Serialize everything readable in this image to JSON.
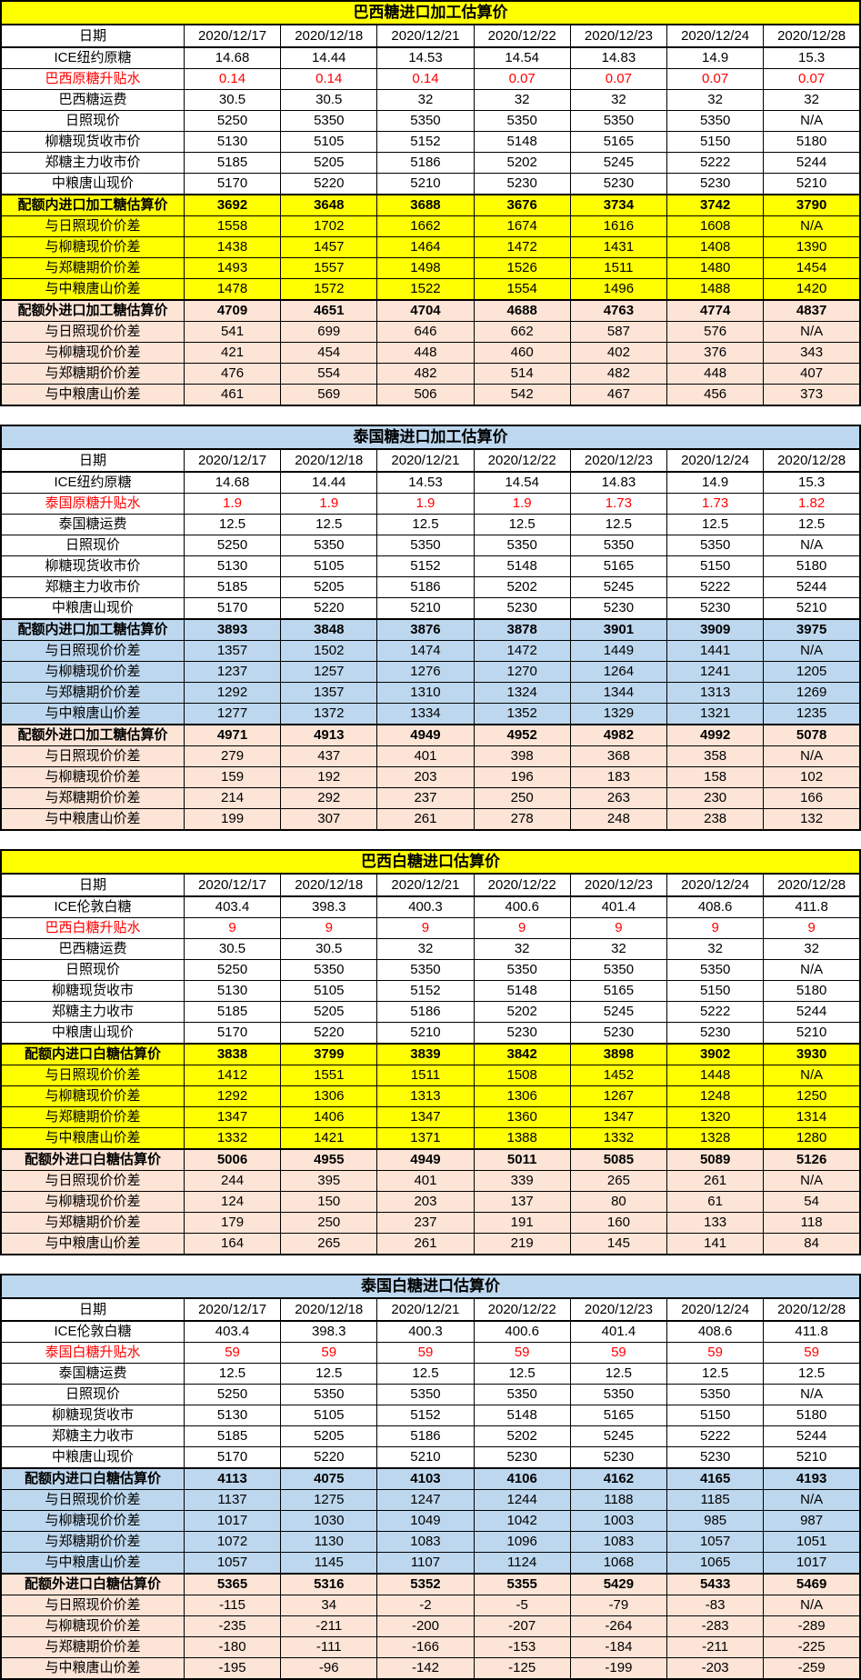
{
  "colors": {
    "yellow_theme": "#FFFF00",
    "blue_theme": "#BDD7EE",
    "peach_band": "#FCE4D6",
    "red_text": "#FF0000",
    "border": "#000000"
  },
  "tables": [
    {
      "title": "巴西糖进口加工估算价",
      "theme": "yellow",
      "date_label": "日期",
      "dates": [
        "2020/12/17",
        "2020/12/18",
        "2020/12/21",
        "2020/12/22",
        "2020/12/23",
        "2020/12/24",
        "2020/12/28"
      ],
      "rows": [
        {
          "label": "ICE纽约原糖",
          "style": "plain",
          "values": [
            "14.68",
            "14.44",
            "14.53",
            "14.54",
            "14.83",
            "14.9",
            "15.3"
          ]
        },
        {
          "label": "巴西原糖升贴水",
          "style": "red",
          "values": [
            "0.14",
            "0.14",
            "0.14",
            "0.07",
            "0.07",
            "0.07",
            "0.07"
          ]
        },
        {
          "label": "巴西糖运费",
          "style": "plain",
          "values": [
            "30.5",
            "30.5",
            "32",
            "32",
            "32",
            "32",
            "32"
          ]
        },
        {
          "label": "日照现价",
          "style": "plain",
          "values": [
            "5250",
            "5350",
            "5350",
            "5350",
            "5350",
            "5350",
            "N/A"
          ]
        },
        {
          "label": "柳糖现货收市价",
          "style": "plain",
          "values": [
            "5130",
            "5105",
            "5152",
            "5148",
            "5165",
            "5150",
            "5180"
          ]
        },
        {
          "label": "郑糖主力收市价",
          "style": "plain",
          "values": [
            "5185",
            "5205",
            "5186",
            "5202",
            "5245",
            "5222",
            "5244"
          ]
        },
        {
          "label": "中粮唐山现价",
          "style": "plain",
          "values": [
            "5170",
            "5220",
            "5210",
            "5230",
            "5230",
            "5230",
            "5210"
          ]
        },
        {
          "label": "配额内进口加工糖估算价",
          "style": "in-head",
          "values": [
            "3692",
            "3648",
            "3688",
            "3676",
            "3734",
            "3742",
            "3790"
          ]
        },
        {
          "label": "与日照现价价差",
          "style": "in",
          "values": [
            "1558",
            "1702",
            "1662",
            "1674",
            "1616",
            "1608",
            "N/A"
          ]
        },
        {
          "label": "与柳糖现价价差",
          "style": "in",
          "values": [
            "1438",
            "1457",
            "1464",
            "1472",
            "1431",
            "1408",
            "1390"
          ]
        },
        {
          "label": "与郑糖期价价差",
          "style": "in",
          "values": [
            "1493",
            "1557",
            "1498",
            "1526",
            "1511",
            "1480",
            "1454"
          ]
        },
        {
          "label": "与中粮唐山价差",
          "style": "in",
          "values": [
            "1478",
            "1572",
            "1522",
            "1554",
            "1496",
            "1488",
            "1420"
          ]
        },
        {
          "label": "配额外进口加工糖估算价",
          "style": "out-head",
          "values": [
            "4709",
            "4651",
            "4704",
            "4688",
            "4763",
            "4774",
            "4837"
          ]
        },
        {
          "label": "与日照现价价差",
          "style": "out",
          "values": [
            "541",
            "699",
            "646",
            "662",
            "587",
            "576",
            "N/A"
          ]
        },
        {
          "label": "与柳糖现价价差",
          "style": "out",
          "values": [
            "421",
            "454",
            "448",
            "460",
            "402",
            "376",
            "343"
          ]
        },
        {
          "label": "与郑糖期价价差",
          "style": "out",
          "values": [
            "476",
            "554",
            "482",
            "514",
            "482",
            "448",
            "407"
          ]
        },
        {
          "label": "与中粮唐山价差",
          "style": "out",
          "values": [
            "461",
            "569",
            "506",
            "542",
            "467",
            "456",
            "373"
          ]
        }
      ]
    },
    {
      "title": "泰国糖进口加工估算价",
      "theme": "blue",
      "date_label": "日期",
      "dates": [
        "2020/12/17",
        "2020/12/18",
        "2020/12/21",
        "2020/12/22",
        "2020/12/23",
        "2020/12/24",
        "2020/12/28"
      ],
      "rows": [
        {
          "label": "ICE纽约原糖",
          "style": "plain",
          "values": [
            "14.68",
            "14.44",
            "14.53",
            "14.54",
            "14.83",
            "14.9",
            "15.3"
          ]
        },
        {
          "label": "泰国原糖升贴水",
          "style": "red",
          "values": [
            "1.9",
            "1.9",
            "1.9",
            "1.9",
            "1.73",
            "1.73",
            "1.82"
          ]
        },
        {
          "label": "泰国糖运费",
          "style": "plain",
          "values": [
            "12.5",
            "12.5",
            "12.5",
            "12.5",
            "12.5",
            "12.5",
            "12.5"
          ]
        },
        {
          "label": "日照现价",
          "style": "plain",
          "values": [
            "5250",
            "5350",
            "5350",
            "5350",
            "5350",
            "5350",
            "N/A"
          ]
        },
        {
          "label": "柳糖现货收市价",
          "style": "plain",
          "values": [
            "5130",
            "5105",
            "5152",
            "5148",
            "5165",
            "5150",
            "5180"
          ]
        },
        {
          "label": "郑糖主力收市价",
          "style": "plain",
          "values": [
            "5185",
            "5205",
            "5186",
            "5202",
            "5245",
            "5222",
            "5244"
          ]
        },
        {
          "label": "中粮唐山现价",
          "style": "plain",
          "values": [
            "5170",
            "5220",
            "5210",
            "5230",
            "5230",
            "5230",
            "5210"
          ]
        },
        {
          "label": "配额内进口加工糖估算价",
          "style": "in-head",
          "values": [
            "3893",
            "3848",
            "3876",
            "3878",
            "3901",
            "3909",
            "3975"
          ]
        },
        {
          "label": "与日照现价价差",
          "style": "in",
          "values": [
            "1357",
            "1502",
            "1474",
            "1472",
            "1449",
            "1441",
            "N/A"
          ]
        },
        {
          "label": "与柳糖现价价差",
          "style": "in",
          "values": [
            "1237",
            "1257",
            "1276",
            "1270",
            "1264",
            "1241",
            "1205"
          ]
        },
        {
          "label": "与郑糖期价价差",
          "style": "in",
          "values": [
            "1292",
            "1357",
            "1310",
            "1324",
            "1344",
            "1313",
            "1269"
          ]
        },
        {
          "label": "与中粮唐山价差",
          "style": "in",
          "values": [
            "1277",
            "1372",
            "1334",
            "1352",
            "1329",
            "1321",
            "1235"
          ]
        },
        {
          "label": "配额外进口加工糖估算价",
          "style": "out-head",
          "values": [
            "4971",
            "4913",
            "4949",
            "4952",
            "4982",
            "4992",
            "5078"
          ]
        },
        {
          "label": "与日照现价价差",
          "style": "out",
          "values": [
            "279",
            "437",
            "401",
            "398",
            "368",
            "358",
            "N/A"
          ]
        },
        {
          "label": "与柳糖现价价差",
          "style": "out",
          "values": [
            "159",
            "192",
            "203",
            "196",
            "183",
            "158",
            "102"
          ]
        },
        {
          "label": "与郑糖期价价差",
          "style": "out",
          "values": [
            "214",
            "292",
            "237",
            "250",
            "263",
            "230",
            "166"
          ]
        },
        {
          "label": "与中粮唐山价差",
          "style": "out",
          "values": [
            "199",
            "307",
            "261",
            "278",
            "248",
            "238",
            "132"
          ]
        }
      ]
    },
    {
      "title": "巴西白糖进口估算价",
      "theme": "yellow",
      "date_label": "日期",
      "dates": [
        "2020/12/17",
        "2020/12/18",
        "2020/12/21",
        "2020/12/22",
        "2020/12/23",
        "2020/12/24",
        "2020/12/28"
      ],
      "rows": [
        {
          "label": "ICE伦敦白糖",
          "style": "plain",
          "values": [
            "403.4",
            "398.3",
            "400.3",
            "400.6",
            "401.4",
            "408.6",
            "411.8"
          ]
        },
        {
          "label": "巴西白糖升贴水",
          "style": "red",
          "values": [
            "9",
            "9",
            "9",
            "9",
            "9",
            "9",
            "9"
          ]
        },
        {
          "label": "巴西糖运费",
          "style": "plain",
          "values": [
            "30.5",
            "30.5",
            "32",
            "32",
            "32",
            "32",
            "32"
          ]
        },
        {
          "label": "日照现价",
          "style": "plain",
          "values": [
            "5250",
            "5350",
            "5350",
            "5350",
            "5350",
            "5350",
            "N/A"
          ]
        },
        {
          "label": "柳糖现货收市",
          "style": "plain",
          "values": [
            "5130",
            "5105",
            "5152",
            "5148",
            "5165",
            "5150",
            "5180"
          ]
        },
        {
          "label": "郑糖主力收市",
          "style": "plain",
          "values": [
            "5185",
            "5205",
            "5186",
            "5202",
            "5245",
            "5222",
            "5244"
          ]
        },
        {
          "label": "中粮唐山现价",
          "style": "plain",
          "values": [
            "5170",
            "5220",
            "5210",
            "5230",
            "5230",
            "5230",
            "5210"
          ]
        },
        {
          "label": "配额内进口白糖估算价",
          "style": "in-head",
          "values": [
            "3838",
            "3799",
            "3839",
            "3842",
            "3898",
            "3902",
            "3930"
          ]
        },
        {
          "label": "与日照现价价差",
          "style": "in",
          "values": [
            "1412",
            "1551",
            "1511",
            "1508",
            "1452",
            "1448",
            "N/A"
          ]
        },
        {
          "label": "与柳糖现价价差",
          "style": "in",
          "values": [
            "1292",
            "1306",
            "1313",
            "1306",
            "1267",
            "1248",
            "1250"
          ]
        },
        {
          "label": "与郑糖期价价差",
          "style": "in",
          "values": [
            "1347",
            "1406",
            "1347",
            "1360",
            "1347",
            "1320",
            "1314"
          ]
        },
        {
          "label": "与中粮唐山价差",
          "style": "in",
          "values": [
            "1332",
            "1421",
            "1371",
            "1388",
            "1332",
            "1328",
            "1280"
          ]
        },
        {
          "label": "配额外进口白糖估算价",
          "style": "out-head",
          "values": [
            "5006",
            "4955",
            "4949",
            "5011",
            "5085",
            "5089",
            "5126"
          ]
        },
        {
          "label": "与日照现价价差",
          "style": "out",
          "values": [
            "244",
            "395",
            "401",
            "339",
            "265",
            "261",
            "N/A"
          ]
        },
        {
          "label": "与柳糖现价价差",
          "style": "out",
          "values": [
            "124",
            "150",
            "203",
            "137",
            "80",
            "61",
            "54"
          ]
        },
        {
          "label": "与郑糖期价价差",
          "style": "out",
          "values": [
            "179",
            "250",
            "237",
            "191",
            "160",
            "133",
            "118"
          ]
        },
        {
          "label": "与中粮唐山价差",
          "style": "out",
          "values": [
            "164",
            "265",
            "261",
            "219",
            "145",
            "141",
            "84"
          ]
        }
      ]
    },
    {
      "title": "泰国白糖进口估算价",
      "theme": "blue",
      "date_label": "日期",
      "dates": [
        "2020/12/17",
        "2020/12/18",
        "2020/12/21",
        "2020/12/22",
        "2020/12/23",
        "2020/12/24",
        "2020/12/28"
      ],
      "rows": [
        {
          "label": "ICE伦敦白糖",
          "style": "plain",
          "values": [
            "403.4",
            "398.3",
            "400.3",
            "400.6",
            "401.4",
            "408.6",
            "411.8"
          ]
        },
        {
          "label": "泰国白糖升贴水",
          "style": "red",
          "values": [
            "59",
            "59",
            "59",
            "59",
            "59",
            "59",
            "59"
          ]
        },
        {
          "label": "泰国糖运费",
          "style": "plain",
          "values": [
            "12.5",
            "12.5",
            "12.5",
            "12.5",
            "12.5",
            "12.5",
            "12.5"
          ]
        },
        {
          "label": "日照现价",
          "style": "plain",
          "values": [
            "5250",
            "5350",
            "5350",
            "5350",
            "5350",
            "5350",
            "N/A"
          ]
        },
        {
          "label": "柳糖现货收市",
          "style": "plain",
          "values": [
            "5130",
            "5105",
            "5152",
            "5148",
            "5165",
            "5150",
            "5180"
          ]
        },
        {
          "label": "郑糖主力收市",
          "style": "plain",
          "values": [
            "5185",
            "5205",
            "5186",
            "5202",
            "5245",
            "5222",
            "5244"
          ]
        },
        {
          "label": "中粮唐山现价",
          "style": "plain",
          "values": [
            "5170",
            "5220",
            "5210",
            "5230",
            "5230",
            "5230",
            "5210"
          ]
        },
        {
          "label": "配额内进口白糖估算价",
          "style": "in-head",
          "values": [
            "4113",
            "4075",
            "4103",
            "4106",
            "4162",
            "4165",
            "4193"
          ]
        },
        {
          "label": "与日照现价价差",
          "style": "in",
          "values": [
            "1137",
            "1275",
            "1247",
            "1244",
            "1188",
            "1185",
            "N/A"
          ]
        },
        {
          "label": "与柳糖现价价差",
          "style": "in",
          "values": [
            "1017",
            "1030",
            "1049",
            "1042",
            "1003",
            "985",
            "987"
          ]
        },
        {
          "label": "与郑糖期价价差",
          "style": "in",
          "values": [
            "1072",
            "1130",
            "1083",
            "1096",
            "1083",
            "1057",
            "1051"
          ]
        },
        {
          "label": "与中粮唐山价差",
          "style": "in",
          "values": [
            "1057",
            "1145",
            "1107",
            "1124",
            "1068",
            "1065",
            "1017"
          ]
        },
        {
          "label": "配额外进口白糖估算价",
          "style": "out-head",
          "values": [
            "5365",
            "5316",
            "5352",
            "5355",
            "5429",
            "5433",
            "5469"
          ]
        },
        {
          "label": "与日照现价价差",
          "style": "out",
          "values": [
            "-115",
            "34",
            "-2",
            "-5",
            "-79",
            "-83",
            "N/A"
          ]
        },
        {
          "label": "与柳糖现价价差",
          "style": "out",
          "values": [
            "-235",
            "-211",
            "-200",
            "-207",
            "-264",
            "-283",
            "-289"
          ]
        },
        {
          "label": "与郑糖期价价差",
          "style": "out",
          "values": [
            "-180",
            "-111",
            "-166",
            "-153",
            "-184",
            "-211",
            "-225"
          ]
        },
        {
          "label": "与中粮唐山价差",
          "style": "out",
          "values": [
            "-195",
            "-96",
            "-142",
            "-125",
            "-199",
            "-203",
            "-259"
          ]
        }
      ]
    }
  ]
}
